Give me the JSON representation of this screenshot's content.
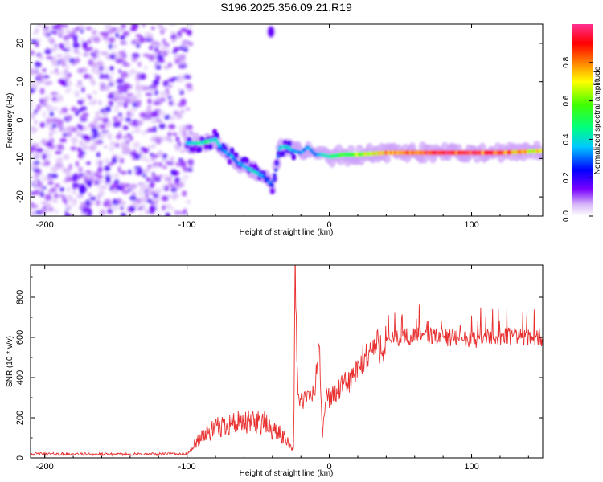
{
  "title": "S196.2025.356.09.21.R19",
  "chart_data": [
    {
      "type": "heatmap",
      "xlabel": "Height of straight line (km)",
      "ylabel": "Frequency (Hz)",
      "xlim": [
        -210,
        150
      ],
      "ylim": [
        -25,
        25
      ],
      "xticks": [
        -200,
        -100,
        0,
        100
      ],
      "yticks": [
        20,
        10,
        0,
        -10,
        -20
      ],
      "colorbar": {
        "label": "Normalized spectral amplitude",
        "range": [
          0,
          1
        ],
        "ticks": [
          "0.0",
          "0.2",
          "0.4",
          "0.6",
          "0.8"
        ]
      },
      "features": {
        "noise_region_x": [
          -210,
          -97
        ],
        "upper_isolated_blob": {
          "x": -41,
          "freq": 23
        },
        "signal_track": {
          "x": [
            -100,
            -90,
            -80,
            -75,
            -70,
            -65,
            -60,
            -55,
            -50,
            -45,
            -40,
            -37,
            -35,
            -30,
            -25,
            -20,
            -15,
            -10,
            -5,
            0,
            10,
            20,
            40,
            60,
            80,
            100,
            120,
            150
          ],
          "freq": [
            -6,
            -6,
            -5,
            -8,
            -9,
            -11,
            -12,
            -13,
            -14,
            -15,
            -17,
            -12,
            -7,
            -7,
            -8,
            -8.5,
            -7,
            -9,
            -9,
            -9.5,
            -9,
            -9,
            -8.5,
            -8.5,
            -8.5,
            -8.5,
            -8.5,
            -8
          ],
          "amp": [
            0.35,
            0.45,
            0.4,
            0.3,
            0.35,
            0.3,
            0.35,
            0.4,
            0.35,
            0.3,
            0.3,
            0.3,
            0.35,
            0.4,
            0.35,
            0.3,
            0.35,
            0.3,
            0.4,
            0.45,
            0.55,
            0.6,
            0.75,
            0.85,
            0.9,
            0.9,
            0.8,
            0.7
          ]
        }
      }
    },
    {
      "type": "line",
      "xlabel": "Height of straight line (km)",
      "ylabel": "SNR (10 * v/v)",
      "xlim": [
        -210,
        150
      ],
      "ylim": [
        0,
        960
      ],
      "xticks": [
        -200,
        -100,
        0,
        100
      ],
      "yticks": [
        0,
        200,
        400,
        600,
        800
      ],
      "color": "#e83030",
      "series": [
        {
          "name": "SNR",
          "x": [
            -210,
            -150,
            -100,
            -90,
            -80,
            -70,
            -60,
            -50,
            -40,
            -30,
            -27,
            -25,
            -24,
            -22,
            -20,
            -15,
            -10,
            -7,
            -5,
            -2,
            0,
            5,
            10,
            15,
            20,
            25,
            30,
            40,
            50,
            60,
            80,
            100,
            120,
            150
          ],
          "y": [
            20,
            18,
            20,
            90,
            120,
            150,
            140,
            160,
            120,
            80,
            50,
            40,
            950,
            300,
            280,
            300,
            330,
            600,
            100,
            320,
            300,
            320,
            360,
            390,
            430,
            500,
            540,
            580,
            600,
            610,
            600,
            590,
            605,
            600
          ]
        }
      ]
    }
  ]
}
